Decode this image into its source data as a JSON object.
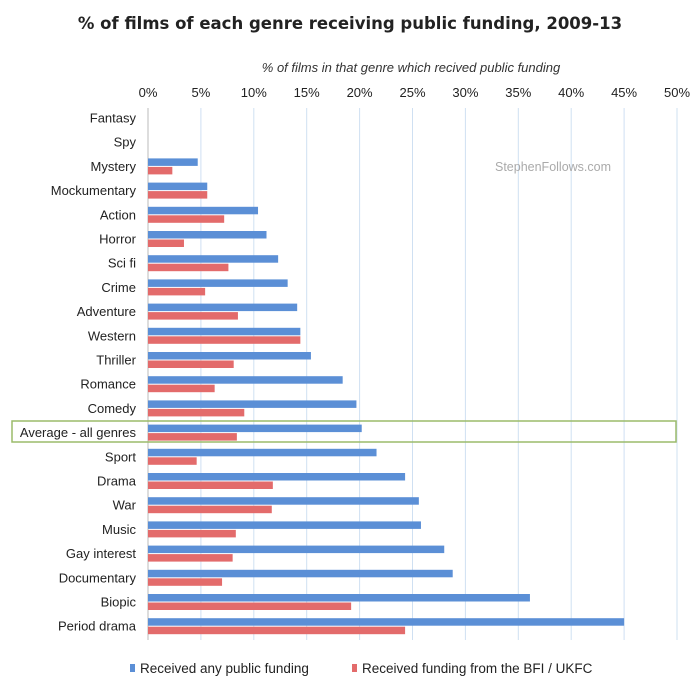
{
  "chart_data": {
    "type": "bar",
    "orientation": "horizontal",
    "title": "% of films of each genre receiving public funding, 2009-13",
    "xlabel": "% of films in that genre which recived public funding",
    "ylabel": "",
    "xlim": [
      0,
      50
    ],
    "xticks": [
      "0%",
      "5%",
      "10%",
      "15%",
      "20%",
      "25%",
      "30%",
      "35%",
      "40%",
      "45%",
      "50%"
    ],
    "grid": true,
    "legend_position": "bottom",
    "watermark": "StephenFollows.com",
    "highlighted_category": "Average - all genres",
    "categories": [
      "Fantasy",
      "Spy",
      "Mystery",
      "Mockumentary",
      "Action",
      "Horror",
      "Sci fi",
      "Crime",
      "Adventure",
      "Western",
      "Thriller",
      "Romance",
      "Comedy",
      "Average - all genres",
      "Sport",
      "Drama",
      "War",
      "Music",
      "Gay interest",
      "Documentary",
      "Biopic",
      "Period drama"
    ],
    "series": [
      {
        "name": "Received any public funding",
        "color": "#5b8fd6",
        "values": [
          0,
          0,
          4.7,
          5.6,
          10.4,
          11.2,
          12.3,
          13.2,
          14.1,
          14.4,
          15.4,
          18.4,
          19.7,
          20.2,
          21.6,
          24.3,
          25.6,
          25.8,
          28.0,
          28.8,
          36.1,
          45.0
        ]
      },
      {
        "name": "Received funding from the BFI / UKFC",
        "color": "#e36b6b",
        "values": [
          0,
          0,
          2.3,
          5.6,
          7.2,
          3.4,
          7.6,
          5.4,
          8.5,
          14.4,
          8.1,
          6.3,
          9.1,
          8.4,
          4.6,
          11.8,
          11.7,
          8.3,
          8.0,
          7.0,
          19.2,
          24.3
        ]
      }
    ]
  }
}
